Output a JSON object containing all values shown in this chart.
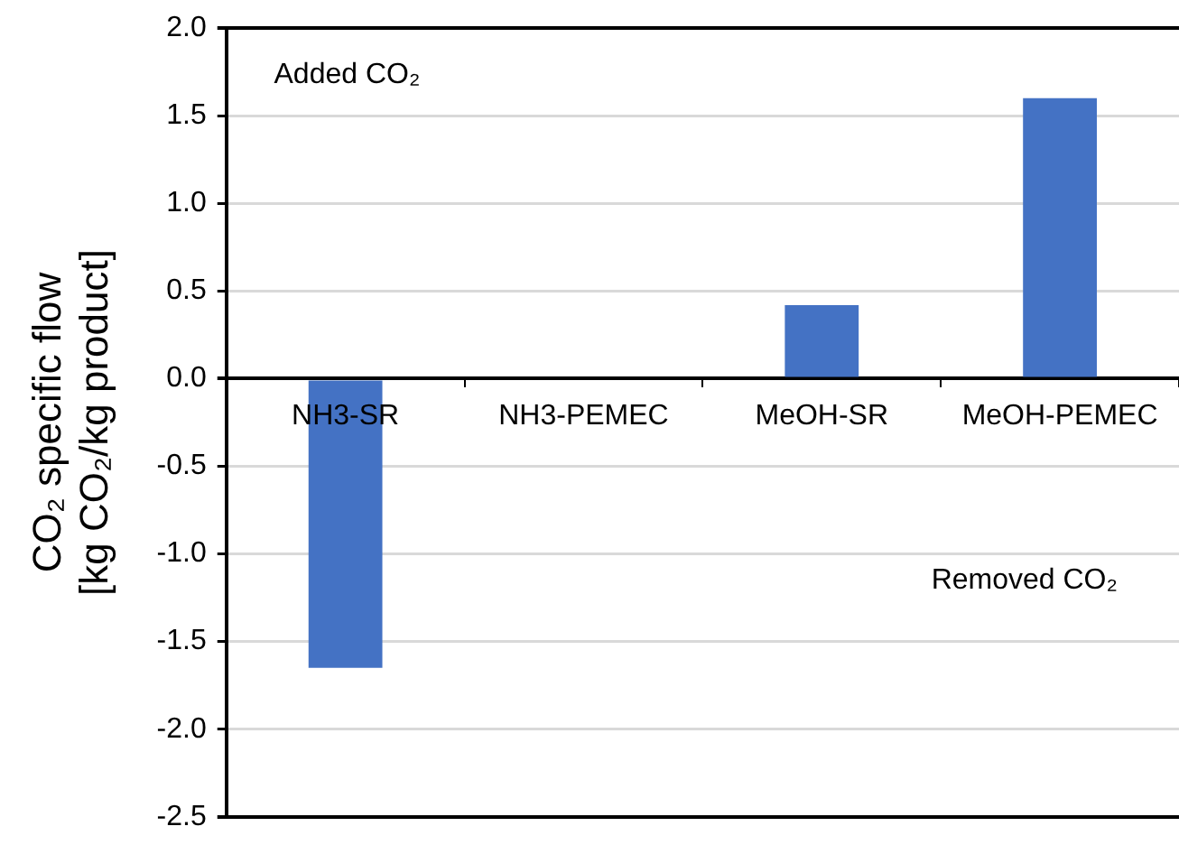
{
  "chart_data": {
    "type": "bar",
    "ylabel": "CO₂ specific flow\n[kg CO₂/kg product]",
    "categories": [
      "NH3-SR",
      "NH3-PEMEC",
      "MeOH-SR",
      "MeOH-PEMEC"
    ],
    "values": [
      -1.65,
      0,
      0.42,
      1.6
    ],
    "color": "#4472c4",
    "ylim": [
      -2.5,
      2.0
    ],
    "yticks": [
      {
        "value": -2.5,
        "label": "-2.5"
      },
      {
        "value": -2.0,
        "label": "-2.0"
      },
      {
        "value": -1.5,
        "label": "-1.5"
      },
      {
        "value": -1.0,
        "label": "-1.0"
      },
      {
        "value": -0.5,
        "label": "-0.5"
      },
      {
        "value": 0,
        "label": "0.0"
      },
      {
        "value": 0.5,
        "label": "0.5"
      },
      {
        "value": 1.0,
        "label": "1.0"
      },
      {
        "value": 1.5,
        "label": "1.5"
      },
      {
        "value": 2.0,
        "label": "2.0"
      }
    ],
    "grid": true,
    "legend": false,
    "annotations": [
      "Added CO₂",
      "Removed CO₂"
    ]
  }
}
